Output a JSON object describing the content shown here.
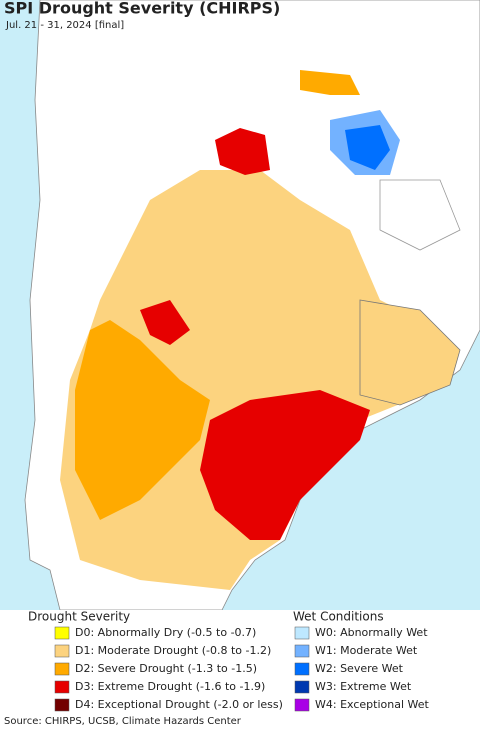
{
  "title": "SPI Drought Severity (CHIRPS)",
  "subtitle": "Jul. 21 - 31, 2024 [final]",
  "legend": {
    "drought": {
      "title": "Drought Severity",
      "items": [
        {
          "label": "D0: Abnormally Dry (-0.5 to -0.7)",
          "color": "#ffff00"
        },
        {
          "label": "D1: Moderate Drought (-0.8 to -1.2)",
          "color": "#fcd37f"
        },
        {
          "label": "D2: Severe Drought (-1.3 to -1.5)",
          "color": "#ffaa00"
        },
        {
          "label": "D3: Extreme Drought (-1.6 to -1.9)",
          "color": "#e60000"
        },
        {
          "label": "D4: Exceptional Drought (-2.0 or less)",
          "color": "#730000"
        }
      ]
    },
    "wet": {
      "title": "Wet Conditions",
      "items": [
        {
          "label": "W0: Abnormally Wet",
          "color": "#bee8ff"
        },
        {
          "label": "W1: Moderate Wet",
          "color": "#73b2ff"
        },
        {
          "label": "W2: Severe Wet",
          "color": "#0070ff"
        },
        {
          "label": "W3: Extreme Wet",
          "color": "#0039b0"
        },
        {
          "label": "W4: Exceptional Wet",
          "color": "#a900e6"
        }
      ]
    }
  },
  "source": "Source: CHIRPS, UCSB, Climate Hazards Center"
}
